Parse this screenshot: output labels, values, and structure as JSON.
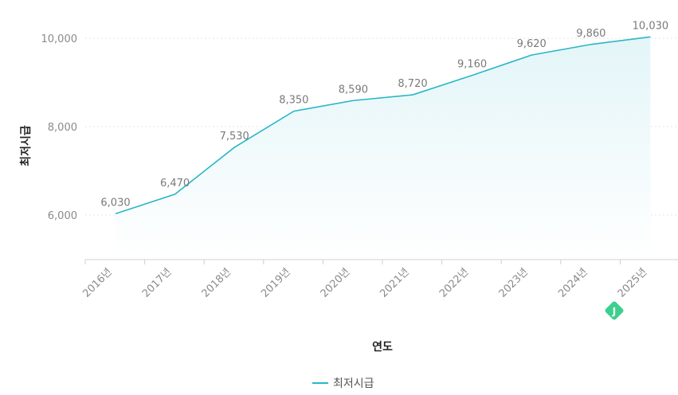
{
  "chart_data": {
    "type": "area",
    "categories": [
      "2016년",
      "2017년",
      "2018년",
      "2019년",
      "2020년",
      "2021년",
      "2022년",
      "2023년",
      "2024년",
      "2025년"
    ],
    "series": [
      {
        "name": "최저시급",
        "values": [
          6030,
          6470,
          7530,
          8350,
          8590,
          8720,
          9160,
          9620,
          9860,
          10030
        ],
        "data_labels": [
          "6,030",
          "6,470",
          "7,530",
          "8,350",
          "8,590",
          "8,720",
          "9,160",
          "9,620",
          "9,860",
          "10,030"
        ]
      }
    ],
    "xlabel": "연도",
    "ylabel": "최저시급",
    "ylim": [
      5000,
      10300
    ],
    "yticks": [
      6000,
      8000,
      10000
    ],
    "ytick_labels": [
      "6,000",
      "8,000",
      "10,000"
    ],
    "grid": "horizontal dotted",
    "legend_position": "bottom-center",
    "colors": {
      "line": "#29b6c8",
      "area_top": "#e3f5f8",
      "area_bottom": "#ffffff",
      "grid": "#e6e6e6",
      "axis": "#d0d0d0",
      "badge": "#3ecf8e"
    },
    "badge_icon": "green-diamond-badge-icon",
    "badge_text": "J"
  }
}
